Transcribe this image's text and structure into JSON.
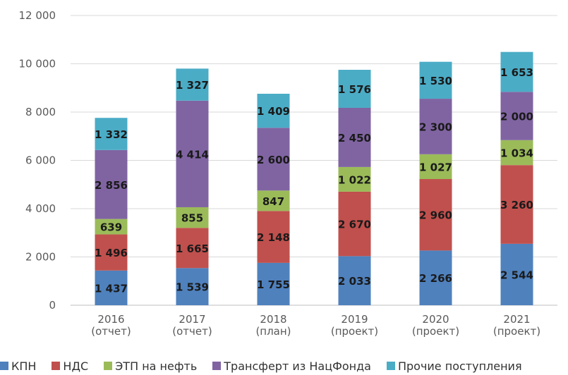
{
  "chart_data": {
    "type": "bar",
    "stacked": true,
    "categories": [
      "2016\n(отчет)",
      "2017\n(отчет)",
      "2018\n(план)",
      "2019\n(проект)",
      "2020\n(проект)",
      "2021\n(проект)"
    ],
    "series": [
      {
        "name": "КПН",
        "color": "#4F81BD",
        "values": [
          1437,
          1539,
          1755,
          2033,
          2266,
          2544
        ],
        "labels": [
          "1 437",
          "1 539",
          "1 755",
          "2 033",
          "2 266",
          "2 544"
        ]
      },
      {
        "name": "НДС",
        "color": "#C0504D",
        "values": [
          1496,
          1665,
          2148,
          2670,
          2960,
          3260
        ],
        "labels": [
          "1 496",
          "1 665",
          "2 148",
          "2 670",
          "2 960",
          "3 260"
        ]
      },
      {
        "name": "ЭТП на нефть",
        "color": "#9BBB59",
        "values": [
          639,
          855,
          847,
          1022,
          1027,
          1034
        ],
        "labels": [
          "639",
          "855",
          "847",
          "1 022",
          "1 027",
          "1 034"
        ]
      },
      {
        "name": "Трансферт из НацФонда",
        "color": "#8064A2",
        "values": [
          2856,
          4414,
          2600,
          2450,
          2300,
          2000
        ],
        "labels": [
          "2 856",
          "4 414",
          "2 600",
          "2 450",
          "2 300",
          "2 000"
        ]
      },
      {
        "name": "Прочие поступления",
        "color": "#4BACC6",
        "values": [
          1332,
          1327,
          1409,
          1576,
          1530,
          1653
        ],
        "labels": [
          "1 332",
          "1 327",
          "1 409",
          "1 576",
          "1 530",
          "1 653"
        ]
      }
    ],
    "yticks": [
      0,
      2000,
      4000,
      6000,
      8000,
      10000,
      12000
    ],
    "ytick_labels": [
      "0",
      "2 000",
      "4 000",
      "6 000",
      "8 000",
      "10 000",
      "12 000"
    ],
    "ylim": [
      0,
      12000
    ],
    "grid": true,
    "legend": "bottom"
  }
}
